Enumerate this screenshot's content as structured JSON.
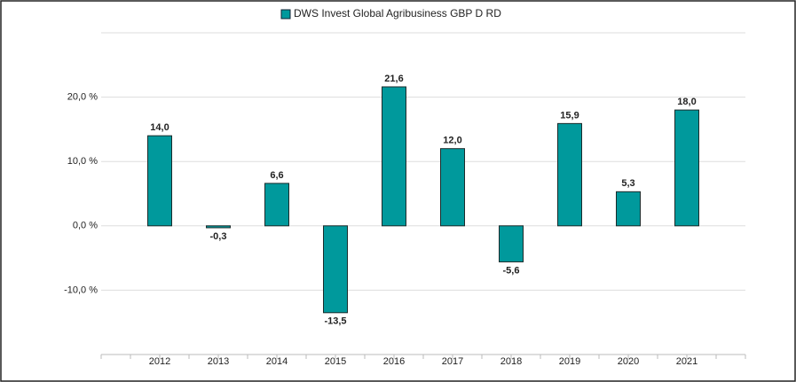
{
  "chart_data": {
    "type": "bar",
    "categories": [
      "2012",
      "2013",
      "2014",
      "2015",
      "2016",
      "2017",
      "2018",
      "2019",
      "2020",
      "2021"
    ],
    "series": [
      {
        "name": "DWS Invest Global Agribusiness  GBP D RD",
        "color": "#00999c",
        "values": [
          14.0,
          -0.3,
          6.6,
          -13.5,
          21.6,
          12.0,
          -5.6,
          15.9,
          5.3,
          18.0
        ],
        "value_labels": [
          "14,0",
          "-0,3",
          "6,6",
          "-13,5",
          "21,6",
          "12,0",
          "-5,6",
          "15,9",
          "5,3",
          "18,0"
        ]
      }
    ],
    "ylim": [
      -20,
      30
    ],
    "yticks": [
      {
        "value": -10,
        "label": "-10,0 %"
      },
      {
        "value": 0,
        "label": "0,0 %"
      },
      {
        "value": 10,
        "label": "10,0 %"
      },
      {
        "value": 20,
        "label": "20,0 %"
      }
    ],
    "grid": true,
    "legend": "top"
  }
}
